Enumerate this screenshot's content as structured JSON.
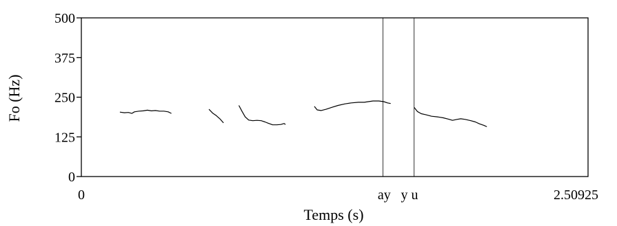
{
  "chart_data": {
    "type": "line",
    "xlabel": "Temps (s)",
    "ylabel": "Fo (Hz)",
    "xlim": [
      0,
      2.50925
    ],
    "ylim": [
      0,
      500
    ],
    "x_tick_labels": [
      {
        "value": 0,
        "label": "0"
      },
      {
        "value": 2.50925,
        "label": "2.50925"
      }
    ],
    "y_tick_labels": [
      {
        "value": 0,
        "label": "0"
      },
      {
        "value": 125,
        "label": "125"
      },
      {
        "value": 250,
        "label": "250"
      },
      {
        "value": 375,
        "label": "375"
      },
      {
        "value": 500,
        "label": "500"
      }
    ],
    "markers": [
      {
        "x": 1.494,
        "label": ""
      },
      {
        "x": 1.648,
        "label": ""
      }
    ],
    "marker_annotations": [
      {
        "x": 1.5,
        "text": "ay"
      },
      {
        "x": 1.625,
        "text": "y u"
      }
    ],
    "series": [
      {
        "points": [
          [
            0.191,
            203
          ],
          [
            0.213,
            201
          ],
          [
            0.233,
            202
          ],
          [
            0.25,
            199
          ],
          [
            0.263,
            204
          ],
          [
            0.285,
            206
          ],
          [
            0.306,
            207
          ],
          [
            0.327,
            209
          ],
          [
            0.347,
            207
          ],
          [
            0.367,
            208
          ],
          [
            0.388,
            206
          ],
          [
            0.409,
            206
          ],
          [
            0.43,
            204
          ],
          [
            0.446,
            199
          ]
        ]
      },
      {
        "points": [
          [
            0.632,
            212
          ],
          [
            0.65,
            200
          ],
          [
            0.668,
            192
          ],
          [
            0.686,
            182
          ],
          [
            0.704,
            169
          ]
        ]
      },
      {
        "points": [
          [
            0.78,
            224
          ],
          [
            0.796,
            205
          ],
          [
            0.811,
            188
          ],
          [
            0.829,
            178
          ],
          [
            0.849,
            176
          ],
          [
            0.87,
            177
          ],
          [
            0.891,
            176
          ],
          [
            0.909,
            172
          ],
          [
            0.926,
            168
          ],
          [
            0.947,
            163
          ],
          [
            0.968,
            163
          ],
          [
            0.988,
            164
          ],
          [
            1.004,
            167
          ],
          [
            1.011,
            164
          ]
        ]
      },
      {
        "points": [
          [
            1.154,
            221
          ],
          [
            1.168,
            210
          ],
          [
            1.187,
            208
          ],
          [
            1.212,
            212
          ],
          [
            1.24,
            218
          ],
          [
            1.271,
            224
          ],
          [
            1.306,
            229
          ],
          [
            1.337,
            232
          ],
          [
            1.372,
            234
          ],
          [
            1.401,
            234
          ],
          [
            1.421,
            236
          ],
          [
            1.444,
            238
          ],
          [
            1.473,
            238
          ],
          [
            1.498,
            236
          ],
          [
            1.516,
            232
          ],
          [
            1.532,
            230
          ]
        ]
      },
      {
        "points": [
          [
            1.648,
            218
          ],
          [
            1.664,
            205
          ],
          [
            1.683,
            198
          ],
          [
            1.705,
            195
          ],
          [
            1.734,
            190
          ],
          [
            1.763,
            188
          ],
          [
            1.792,
            185
          ],
          [
            1.818,
            181
          ],
          [
            1.838,
            177
          ],
          [
            1.86,
            180
          ],
          [
            1.879,
            182
          ],
          [
            1.901,
            180
          ],
          [
            1.929,
            176
          ],
          [
            1.951,
            172
          ],
          [
            1.972,
            166
          ],
          [
            1.994,
            161
          ],
          [
            2.008,
            157
          ]
        ]
      }
    ]
  }
}
